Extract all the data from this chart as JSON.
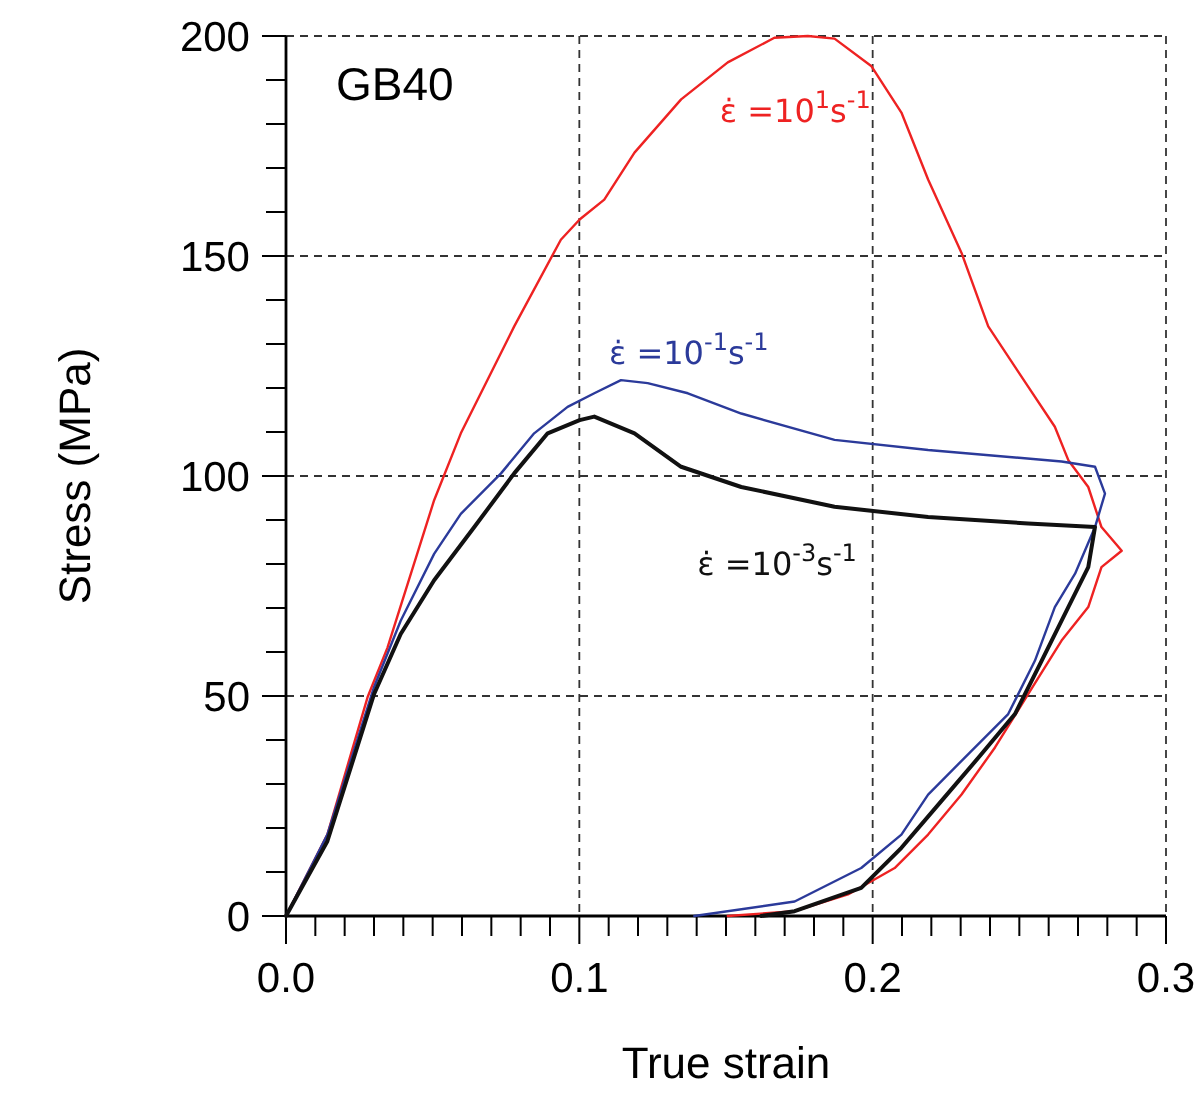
{
  "chart_data": {
    "type": "line",
    "title": "GB40",
    "xlabel": "True strain",
    "ylabel": "Stress (MPa)",
    "xlim": [
      0,
      0.3
    ],
    "ylim": [
      0,
      200
    ],
    "xticks": [
      {
        "value": 0,
        "label": "0.0"
      },
      {
        "value": 0.01,
        "label": null
      },
      {
        "value": 0.02,
        "label": null
      },
      {
        "value": 0.03,
        "label": null
      },
      {
        "value": 0.04,
        "label": null
      },
      {
        "value": 0.05,
        "label": null
      },
      {
        "value": 0.06,
        "label": null
      },
      {
        "value": 0.07,
        "label": null
      },
      {
        "value": 0.08,
        "label": null
      },
      {
        "value": 0.09,
        "label": null
      },
      {
        "value": 0.1,
        "label": "0.1"
      },
      {
        "value": 0.11,
        "label": null
      },
      {
        "value": 0.12,
        "label": null
      },
      {
        "value": 0.13,
        "label": null
      },
      {
        "value": 0.14,
        "label": null
      },
      {
        "value": 0.15,
        "label": null
      },
      {
        "value": 0.16,
        "label": null
      },
      {
        "value": 0.17,
        "label": null
      },
      {
        "value": 0.18,
        "label": null
      },
      {
        "value": 0.19,
        "label": null
      },
      {
        "value": 0.2,
        "label": "0.2"
      },
      {
        "value": 0.21,
        "label": null
      },
      {
        "value": 0.22,
        "label": null
      },
      {
        "value": 0.23,
        "label": null
      },
      {
        "value": 0.24,
        "label": null
      },
      {
        "value": 0.25,
        "label": null
      },
      {
        "value": 0.26,
        "label": null
      },
      {
        "value": 0.27,
        "label": null
      },
      {
        "value": 0.28,
        "label": null
      },
      {
        "value": 0.29,
        "label": null
      },
      {
        "value": 0.3,
        "label": "0.3"
      }
    ],
    "yticks": [
      0,
      {
        "value": 10,
        "label": null
      },
      {
        "value": 20,
        "label": null
      },
      {
        "value": 30,
        "label": null
      },
      {
        "value": 40,
        "label": null
      },
      50,
      {
        "value": 60,
        "label": null
      },
      {
        "value": 70,
        "label": null
      },
      {
        "value": 80,
        "label": null
      },
      {
        "value": 90,
        "label": null
      },
      100,
      {
        "value": 110,
        "label": null
      },
      {
        "value": 120,
        "label": null
      },
      {
        "value": 130,
        "label": null
      },
      {
        "value": 140,
        "label": null
      },
      150,
      {
        "value": 160,
        "label": null
      },
      {
        "value": 170,
        "label": null
      },
      {
        "value": 180,
        "label": null
      },
      {
        "value": 190,
        "label": null
      },
      200
    ],
    "grid": true,
    "legend": false,
    "marker": "none",
    "line_style": "solid",
    "series": [
      {
        "name": "ε̇ =10$^{1}$s$^{-1}$",
        "color": "#ee2222",
        "x": [
          0,
          0.0141,
          0.0278,
          0.0346,
          0.0505,
          0.0596,
          0.0778,
          0.0937,
          0.1001,
          0.1085,
          0.1188,
          0.1347,
          0.1506,
          0.1665,
          0.1779,
          0.187,
          0.1995,
          0.2098,
          0.2189,
          0.2303,
          0.2394,
          0.253,
          0.2621,
          0.2667,
          0.2735,
          0.278,
          0.2849,
          0.278,
          0.2735,
          0.2644,
          0.253,
          0.2417,
          0.2303,
          0.2189,
          0.2075,
          0.1916,
          0.1734,
          0.1506
        ],
        "values": [
          0,
          18.5,
          49.7,
          61,
          94.5,
          109.7,
          134,
          153.7,
          158.3,
          162.8,
          173.5,
          185.6,
          194,
          199.6,
          200,
          199.4,
          193.2,
          182.6,
          167.4,
          150.7,
          134,
          120.3,
          111.2,
          103.6,
          97.5,
          88.4,
          83,
          79.3,
          70.2,
          62.6,
          50.4,
          38.3,
          27.6,
          18.5,
          10.9,
          4.9,
          1.1,
          0
        ]
      },
      {
        "name": "ε̇ =10$^{-1}$s$^{-1}$",
        "color": "#2b3a9a",
        "x": [
          0,
          0.0141,
          0.03,
          0.0391,
          0.0505,
          0.0596,
          0.0733,
          0.0846,
          0.096,
          0.1051,
          0.1142,
          0.1233,
          0.137,
          0.1552,
          0.187,
          0.2189,
          0.2644,
          0.2758,
          0.2792,
          0.2758,
          0.269,
          0.2621,
          0.2553,
          0.2462,
          0.2326,
          0.2189,
          0.2098,
          0.1961,
          0.1734,
          0.1392
        ],
        "values": [
          0,
          18.5,
          52,
          67.1,
          82.3,
          91.4,
          100.6,
          109.7,
          115.7,
          118.8,
          121.8,
          121.1,
          118.8,
          114.2,
          108.2,
          105.9,
          103.3,
          102.1,
          96,
          88.4,
          77.8,
          70.2,
          58,
          45.9,
          36.8,
          27.6,
          18.5,
          10.9,
          3.3,
          0
        ]
      },
      {
        "name": "ε̇ =10$^{-3}$s$^{-1}$",
        "color": "#111111",
        "x": [
          0,
          0.0141,
          0.03,
          0.0391,
          0.0505,
          0.0642,
          0.0778,
          0.0892,
          0.1001,
          0.1051,
          0.1188,
          0.1347,
          0.1552,
          0.187,
          0.2189,
          0.253,
          0.2758,
          0.2735,
          0.2667,
          0.2576,
          0.2485,
          0.2371,
          0.2234,
          0.2098,
          0.1961,
          0.1734,
          0.162
        ],
        "values": [
          0,
          17,
          50.4,
          64.1,
          76.3,
          88.4,
          100.6,
          109.7,
          112.7,
          113.5,
          109.7,
          102.1,
          97.5,
          93,
          90.7,
          89.2,
          88.4,
          79.3,
          70.2,
          58,
          45.9,
          36.8,
          26.1,
          15.5,
          6.4,
          1.1,
          0
        ]
      }
    ]
  }
}
